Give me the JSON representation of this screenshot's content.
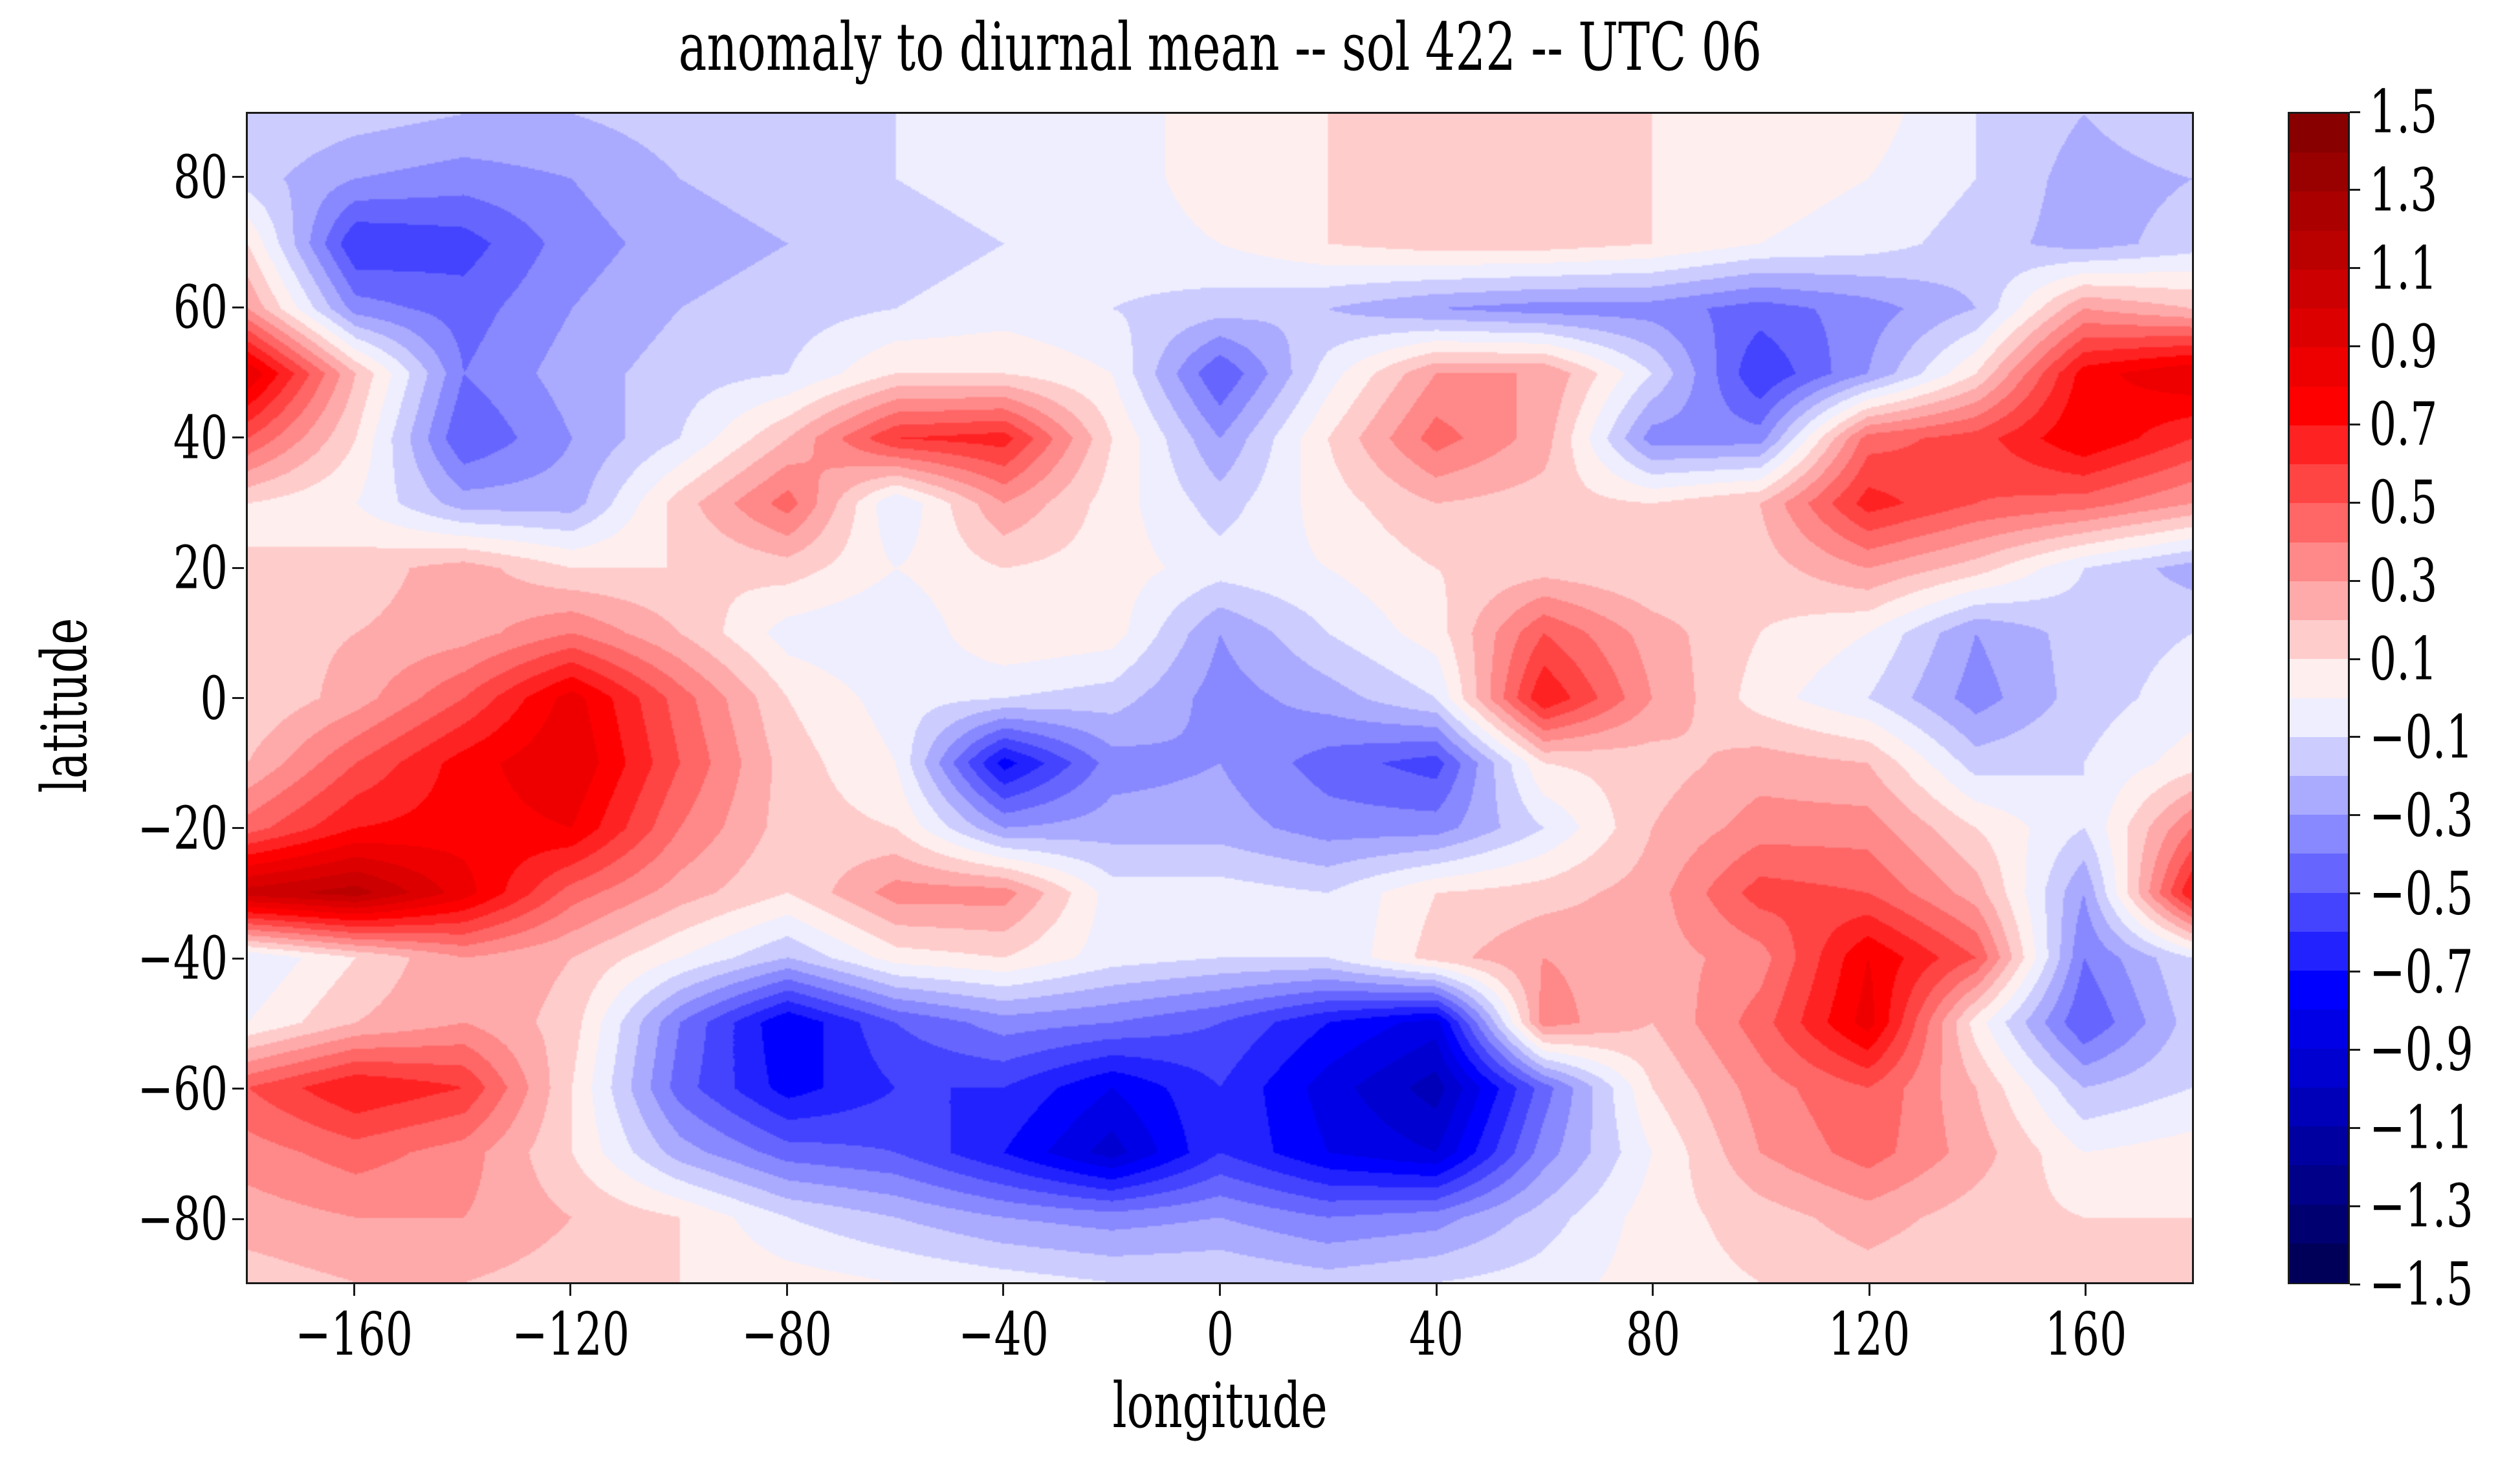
{
  "figure": {
    "title": "anomaly to diurnal mean -- sol 422 -- UTC 06",
    "background_color": "#ffffff",
    "spine_color": "#1a1a1a",
    "text_color": "#000000"
  },
  "axes": {
    "xlabel": "longitude",
    "ylabel": "latitude",
    "xlim": [
      -180,
      180
    ],
    "ylim": [
      -90,
      90
    ],
    "x_ticks": [
      {
        "v": -160,
        "label": "−160"
      },
      {
        "v": -120,
        "label": "−120"
      },
      {
        "v": -80,
        "label": "−80"
      },
      {
        "v": -40,
        "label": "−40"
      },
      {
        "v": 0,
        "label": "0"
      },
      {
        "v": 40,
        "label": "40"
      },
      {
        "v": 80,
        "label": "80"
      },
      {
        "v": 120,
        "label": "120"
      },
      {
        "v": 160,
        "label": "160"
      }
    ],
    "y_ticks": [
      {
        "v": 80,
        "label": "80"
      },
      {
        "v": 60,
        "label": "60"
      },
      {
        "v": 40,
        "label": "40"
      },
      {
        "v": 20,
        "label": "20"
      },
      {
        "v": 0,
        "label": "0"
      },
      {
        "v": -20,
        "label": "−20"
      },
      {
        "v": -40,
        "label": "−40"
      },
      {
        "v": -60,
        "label": "−60"
      },
      {
        "v": -80,
        "label": "−80"
      }
    ]
  },
  "colorbar": {
    "min": -1.5,
    "max": 1.5,
    "band_step": 0.1,
    "ticks": [
      {
        "v": 1.5,
        "label": "1.5"
      },
      {
        "v": 1.3,
        "label": "1.3"
      },
      {
        "v": 1.1,
        "label": "1.1"
      },
      {
        "v": 0.9,
        "label": "0.9"
      },
      {
        "v": 0.7,
        "label": "0.7"
      },
      {
        "v": 0.5,
        "label": "0.5"
      },
      {
        "v": 0.3,
        "label": "0.3"
      },
      {
        "v": 0.1,
        "label": "0.1"
      },
      {
        "v": -0.1,
        "label": "−0.1"
      },
      {
        "v": -0.3,
        "label": "−0.3"
      },
      {
        "v": -0.5,
        "label": "−0.5"
      },
      {
        "v": -0.7,
        "label": "−0.7"
      },
      {
        "v": -0.9,
        "label": "−0.9"
      },
      {
        "v": -1.1,
        "label": "−1.1"
      },
      {
        "v": -1.3,
        "label": "−1.3"
      },
      {
        "v": -1.5,
        "label": "−1.5"
      }
    ],
    "colormap": {
      "name": "seismic",
      "anchors": [
        {
          "t": 0.0,
          "color": "#00004d"
        },
        {
          "t": 0.25,
          "color": "#0000ff"
        },
        {
          "t": 0.5,
          "color": "#ffffff"
        },
        {
          "t": 0.75,
          "color": "#ff0000"
        },
        {
          "t": 1.0,
          "color": "#800000"
        }
      ]
    }
  },
  "chart_data": {
    "type": "contourf-heatmap",
    "title": "anomaly to diurnal mean -- sol 422 -- UTC 06",
    "xlabel": "longitude",
    "ylabel": "latitude",
    "xlim": [
      -180,
      180
    ],
    "ylim": [
      -90,
      90
    ],
    "levels": {
      "min": -1.5,
      "max": 1.5,
      "step": 0.1
    },
    "legend_position": "right-colorbar",
    "grid": false,
    "lons": [
      -180,
      -160,
      -140,
      -120,
      -100,
      -80,
      -60,
      -40,
      -20,
      0,
      20,
      40,
      60,
      80,
      100,
      120,
      140,
      160,
      180
    ],
    "lats": [
      90,
      80,
      70,
      60,
      50,
      40,
      30,
      20,
      10,
      0,
      -10,
      -20,
      -30,
      -40,
      -50,
      -60,
      -70,
      -80,
      -90
    ],
    "values": [
      [
        -0.1,
        -0.15,
        -0.2,
        -0.2,
        -0.15,
        -0.1,
        -0.1,
        -0.05,
        -0.05,
        0.05,
        0.1,
        0.1,
        0.1,
        0.1,
        0.05,
        0.05,
        -0.1,
        -0.2,
        -0.1
      ],
      [
        -0.15,
        -0.3,
        -0.35,
        -0.3,
        -0.2,
        -0.15,
        -0.1,
        -0.05,
        -0.05,
        0.05,
        0.1,
        0.15,
        0.1,
        0.1,
        0.05,
        0.0,
        -0.1,
        -0.25,
        -0.2
      ],
      [
        0.1,
        -0.6,
        -0.55,
        -0.35,
        -0.25,
        -0.2,
        -0.15,
        -0.1,
        -0.05,
        0.0,
        0.1,
        0.15,
        0.15,
        0.1,
        0.0,
        -0.05,
        -0.15,
        -0.25,
        -0.15
      ],
      [
        0.3,
        -0.35,
        -0.45,
        -0.3,
        -0.2,
        -0.15,
        -0.1,
        -0.05,
        -0.1,
        -0.15,
        -0.2,
        -0.3,
        -0.35,
        -0.35,
        -0.45,
        -0.35,
        -0.2,
        0.3,
        0.2
      ],
      [
        0.9,
        0.2,
        -0.4,
        -0.25,
        -0.15,
        -0.1,
        0.1,
        0.1,
        0.0,
        -0.5,
        -0.05,
        0.3,
        0.3,
        -0.1,
        -0.6,
        -0.3,
        0.1,
        0.75,
        0.9
      ],
      [
        0.5,
        0.1,
        -0.5,
        -0.3,
        -0.1,
        0.2,
        0.6,
        0.65,
        0.1,
        -0.3,
        0.1,
        0.45,
        0.25,
        -0.35,
        -0.35,
        0.45,
        0.55,
        0.8,
        0.6
      ],
      [
        0.1,
        0.0,
        -0.25,
        -0.25,
        0.15,
        0.45,
        -0.1,
        0.3,
        0.05,
        -0.15,
        0.05,
        0.2,
        0.15,
        0.1,
        0.2,
        0.65,
        0.5,
        0.45,
        0.3
      ],
      [
        0.1,
        0.15,
        0.25,
        0.1,
        0.1,
        0.15,
        0.0,
        0.1,
        0.05,
        -0.05,
        0.0,
        0.1,
        0.15,
        0.1,
        0.15,
        0.3,
        0.15,
        -0.1,
        -0.25
      ],
      [
        0.15,
        0.2,
        0.25,
        0.4,
        0.2,
        -0.05,
        -0.1,
        0.1,
        0.05,
        -0.3,
        -0.1,
        0.05,
        0.5,
        0.25,
        0.1,
        0.0,
        -0.3,
        -0.15,
        -0.1
      ],
      [
        0.1,
        0.25,
        0.5,
        0.85,
        0.45,
        0.1,
        -0.05,
        -0.1,
        -0.15,
        -0.35,
        -0.25,
        -0.1,
        0.7,
        0.3,
        0.05,
        -0.1,
        -0.35,
        -0.15,
        -0.05
      ],
      [
        0.2,
        0.5,
        0.75,
        0.9,
        0.5,
        0.15,
        0.0,
        -0.75,
        -0.35,
        -0.3,
        -0.45,
        -0.55,
        0.1,
        0.15,
        0.25,
        0.2,
        -0.15,
        -0.1,
        0.05
      ],
      [
        0.45,
        0.7,
        0.75,
        0.8,
        0.4,
        0.15,
        0.1,
        -0.3,
        -0.25,
        -0.25,
        -0.35,
        -0.35,
        -0.1,
        0.2,
        0.35,
        0.35,
        0.1,
        -0.1,
        0.4
      ],
      [
        1.05,
        1.15,
        0.85,
        0.45,
        0.25,
        0.1,
        0.35,
        0.35,
        -0.05,
        -0.05,
        -0.1,
        0.1,
        0.15,
        0.25,
        0.55,
        0.5,
        0.25,
        -0.3,
        0.7
      ],
      [
        -0.1,
        0.1,
        0.3,
        0.2,
        0.0,
        -0.2,
        0.05,
        0.1,
        -0.05,
        -0.1,
        -0.1,
        0.15,
        0.3,
        0.25,
        0.35,
        0.8,
        0.5,
        -0.4,
        -0.1
      ],
      [
        0.0,
        0.2,
        0.3,
        0.15,
        -0.4,
        -0.8,
        -0.5,
        -0.35,
        -0.4,
        -0.5,
        -0.7,
        -0.85,
        0.35,
        0.2,
        0.45,
        0.85,
        0.05,
        -0.5,
        -0.15
      ],
      [
        0.5,
        0.7,
        0.6,
        0.1,
        -0.45,
        -0.75,
        -0.6,
        -0.6,
        -0.8,
        -0.6,
        -0.85,
        -1.05,
        -0.45,
        0.1,
        0.35,
        0.5,
        0.2,
        -0.2,
        -0.1
      ],
      [
        0.35,
        0.45,
        0.35,
        0.1,
        -0.25,
        -0.45,
        -0.5,
        -0.7,
        -0.95,
        -0.6,
        -0.8,
        -0.9,
        -0.35,
        0.0,
        0.3,
        0.45,
        0.25,
        0.0,
        0.05
      ],
      [
        0.25,
        0.3,
        0.3,
        0.2,
        0.1,
        -0.1,
        -0.2,
        -0.3,
        -0.35,
        -0.3,
        -0.4,
        -0.35,
        -0.15,
        0.05,
        0.15,
        0.25,
        0.15,
        0.1,
        0.1
      ],
      [
        0.15,
        0.2,
        0.2,
        0.15,
        0.1,
        0.05,
        0.0,
        -0.05,
        -0.1,
        -0.1,
        -0.15,
        -0.1,
        -0.05,
        0.05,
        0.1,
        0.15,
        0.1,
        0.1,
        0.1
      ]
    ]
  }
}
